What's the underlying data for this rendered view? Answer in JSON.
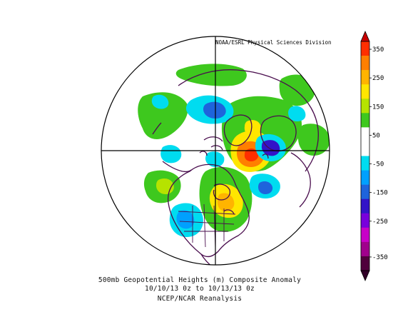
{
  "map": {
    "credit": "NOAA/ESRL Physical Sciences Division"
  },
  "caption": {
    "line1": "500mb Geopotential Heights (m)   Composite Anomaly",
    "line2": "10/10/13 0z  to 10/13/13 0z",
    "line3": "NCEP/NCAR Reanalysis"
  },
  "colorbar": {
    "labels": [
      "350",
      "250",
      "150",
      "50",
      "-50",
      "-150",
      "-250",
      "-350"
    ],
    "colors": [
      "#ff2f00",
      "#ff7f00",
      "#ffb400",
      "#ffe600",
      "#b6e300",
      "#3ec81e",
      "#ffffff",
      "#ffffff",
      "#00dcf0",
      "#00a0ff",
      "#1e64dc",
      "#3214c8",
      "#7800dc",
      "#c800c8",
      "#a0008c",
      "#50003c"
    ],
    "top_cap": "#c80000",
    "bottom_cap": "#320028"
  },
  "palette": {
    "land": "#4a0e4e",
    "frame": "#000000"
  }
}
